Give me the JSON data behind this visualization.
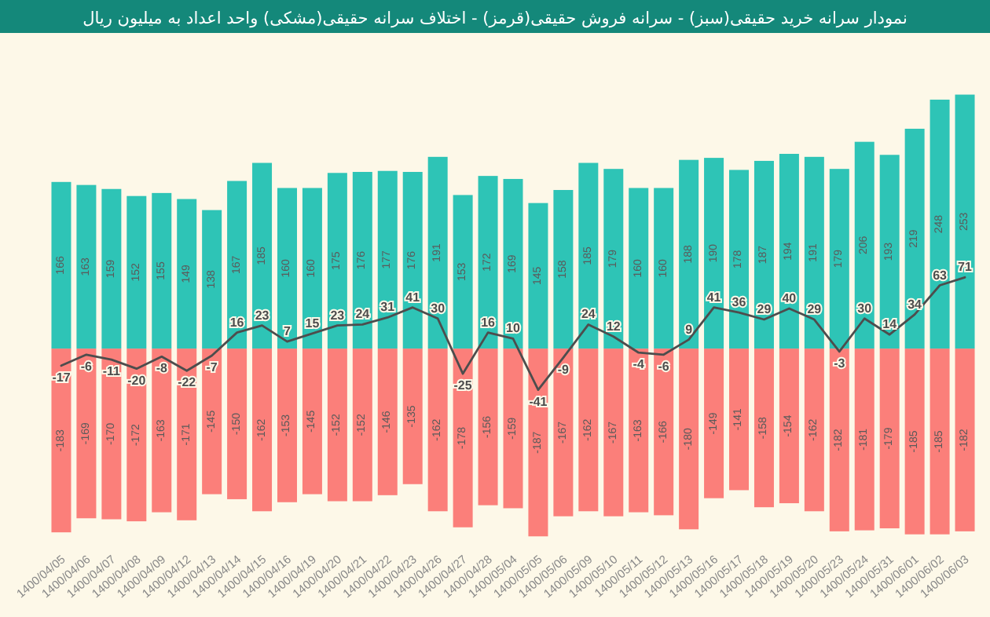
{
  "chart_data": {
    "type": "bar",
    "title": "نمودار سرانه خرید حقیقی(سبز) - سرانه فروش حقیقی(قرمز) - اختلاف سرانه حقیقی(مشکی) واحد اعداد به میلیون ریال",
    "categories": [
      "1400/04/05",
      "1400/04/06",
      "1400/04/07",
      "1400/04/08",
      "1400/04/09",
      "1400/04/12",
      "1400/04/13",
      "1400/04/14",
      "1400/04/15",
      "1400/04/16",
      "1400/04/19",
      "1400/04/20",
      "1400/04/21",
      "1400/04/22",
      "1400/04/23",
      "1400/04/26",
      "1400/04/27",
      "1400/04/28",
      "1400/05/04",
      "1400/05/05",
      "1400/05/06",
      "1400/05/09",
      "1400/05/10",
      "1400/05/11",
      "1400/05/12",
      "1400/05/13",
      "1400/05/16",
      "1400/05/17",
      "1400/05/18",
      "1400/05/19",
      "1400/05/20",
      "1400/05/23",
      "1400/05/24",
      "1400/05/31",
      "1400/06/01",
      "1400/06/02",
      "1400/06/03"
    ],
    "series": [
      {
        "color": "#2ec4b6",
        "values": [
          166,
          163,
          159,
          152,
          155,
          149,
          138,
          167,
          185,
          160,
          160,
          175,
          176,
          177,
          176,
          191,
          153,
          172,
          169,
          145,
          158,
          185,
          179,
          160,
          160,
          188,
          190,
          178,
          187,
          194,
          191,
          179,
          206,
          193,
          219,
          248,
          253
        ]
      },
      {
        "color": "#fb7f7a",
        "values": [
          -183,
          -169,
          -170,
          -172,
          -163,
          -171,
          -145,
          -150,
          -162,
          -153,
          -145,
          -152,
          -152,
          -146,
          -135,
          -162,
          -178,
          -156,
          -159,
          -187,
          -167,
          -162,
          -167,
          -163,
          -166,
          -180,
          -149,
          -141,
          -158,
          -154,
          -162,
          -182,
          -181,
          -179,
          -185,
          -185,
          -182
        ]
      },
      {
        "type": "line",
        "color": "#4d4d4d",
        "values": [
          -17,
          -6,
          -11,
          -20,
          -8,
          -22,
          -7,
          16,
          23,
          7,
          15,
          23,
          24,
          31,
          41,
          30,
          -25,
          16,
          10,
          -41,
          -9,
          24,
          12,
          -4,
          -6,
          9,
          41,
          36,
          29,
          40,
          29,
          -3,
          30,
          14,
          34,
          63,
          71
        ]
      }
    ],
    "stacked": true,
    "data_labels": true,
    "marker": "none",
    "tick_labels": "x"
  }
}
